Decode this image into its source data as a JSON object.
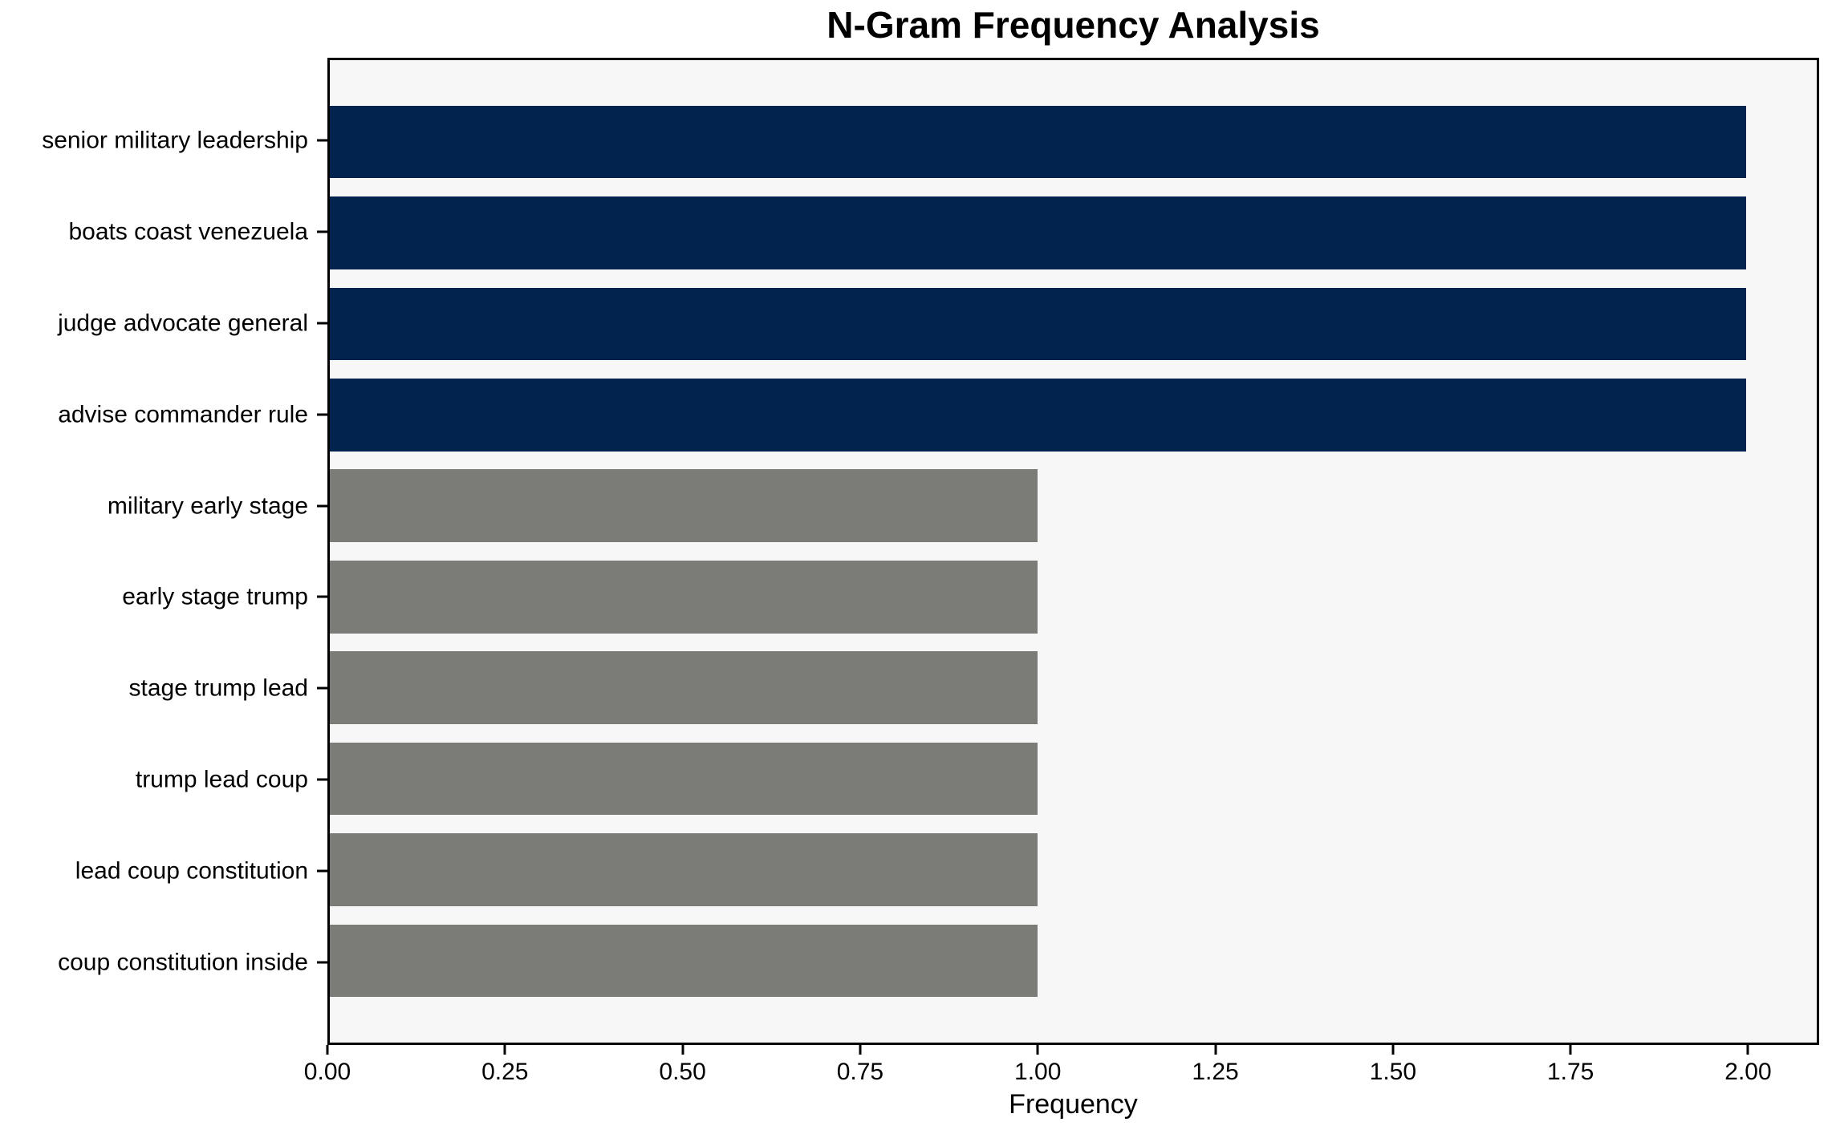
{
  "chart_data": {
    "type": "bar",
    "orientation": "horizontal",
    "title": "N-Gram Frequency Analysis",
    "xlabel": "Frequency",
    "ylabel": "",
    "categories": [
      "senior military leadership",
      "boats coast venezuela",
      "judge advocate general",
      "advise commander rule",
      "military early stage",
      "early stage trump",
      "stage trump lead",
      "trump lead coup",
      "lead coup constitution",
      "coup constitution inside"
    ],
    "values": [
      2,
      2,
      2,
      2,
      1,
      1,
      1,
      1,
      1,
      1
    ],
    "bar_colors": [
      "#02234e",
      "#02234e",
      "#02234e",
      "#02234e",
      "#7b7b78",
      "#7b7b78",
      "#7b7b78",
      "#7b7b78",
      "#7b7b78",
      "#7b7b78"
    ],
    "xlim": [
      0,
      2.1
    ],
    "xticks": [
      {
        "value": 0.0,
        "label": "0.00"
      },
      {
        "value": 0.25,
        "label": "0.25"
      },
      {
        "value": 0.5,
        "label": "0.50"
      },
      {
        "value": 0.75,
        "label": "0.75"
      },
      {
        "value": 1.0,
        "label": "1.00"
      },
      {
        "value": 1.25,
        "label": "1.25"
      },
      {
        "value": 1.5,
        "label": "1.50"
      },
      {
        "value": 1.75,
        "label": "1.75"
      },
      {
        "value": 2.0,
        "label": "2.00"
      }
    ],
    "grid": false,
    "legend": null,
    "colors": {
      "high_frequency_bar": "#02234e",
      "low_frequency_bar": "#7b7b78",
      "plot_background": "#f7f7f7",
      "figure_background": "#ffffff",
      "axis_frame": "#000000"
    }
  }
}
